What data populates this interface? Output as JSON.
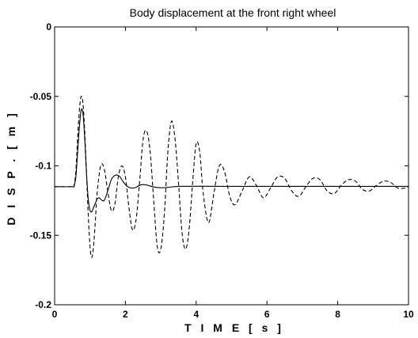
{
  "chart_data": {
    "type": "line",
    "title": "Body displacement at the front right wheel",
    "xlabel": "T I M E   [ s ]",
    "ylabel": "D I S P .   [ m ]",
    "xlim": [
      0,
      10
    ],
    "ylim": [
      -0.2,
      0
    ],
    "xticks": [
      0,
      2,
      4,
      6,
      8,
      10
    ],
    "yticks": [
      0,
      -0.05,
      -0.1,
      -0.15,
      -0.2
    ],
    "xtick_labels": [
      "0",
      "2",
      "4",
      "6",
      "8",
      "10"
    ],
    "ytick_labels": [
      "0",
      "-0.05",
      "-0.1",
      "-0.15",
      "-0.2"
    ],
    "grid": false,
    "series": [
      {
        "style": "solid",
        "color": "#000000",
        "x": [
          0,
          0.5,
          0.55,
          0.6,
          0.65,
          0.7,
          0.75,
          0.8,
          0.85,
          0.9,
          0.95,
          1.0,
          1.05,
          1.1,
          1.15,
          1.2,
          1.25,
          1.3,
          1.35,
          1.4,
          1.45,
          1.5,
          1.55,
          1.6,
          1.65,
          1.7,
          1.75,
          1.8,
          1.85,
          1.9,
          2.0,
          2.1,
          2.2,
          2.3,
          2.4,
          2.5,
          2.6,
          2.8,
          3.0,
          3.2,
          3.5,
          4.0,
          5.0,
          6.0,
          8.0,
          10.0
        ],
        "y": [
          -0.115,
          -0.115,
          -0.1145,
          -0.108,
          -0.09,
          -0.072,
          -0.06,
          -0.062,
          -0.08,
          -0.105,
          -0.124,
          -0.132,
          -0.133,
          -0.13,
          -0.127,
          -0.124,
          -0.123,
          -0.124,
          -0.125,
          -0.125,
          -0.122,
          -0.118,
          -0.114,
          -0.11,
          -0.108,
          -0.107,
          -0.1065,
          -0.107,
          -0.108,
          -0.11,
          -0.1135,
          -0.1155,
          -0.116,
          -0.1155,
          -0.114,
          -0.1135,
          -0.1138,
          -0.1152,
          -0.1158,
          -0.1155,
          -0.1148,
          -0.1147,
          -0.1148,
          -0.1148,
          -0.1148,
          -0.1148
        ]
      },
      {
        "style": "dashed",
        "color": "#000000",
        "x": [
          0,
          0.5,
          0.55,
          0.6,
          0.65,
          0.7,
          0.75,
          0.8,
          0.85,
          0.9,
          0.95,
          1.0,
          1.05,
          1.1,
          1.15,
          1.2,
          1.3,
          1.4,
          1.5,
          1.6,
          1.7,
          1.8,
          1.9,
          2.0,
          2.1,
          2.2,
          2.3,
          2.4,
          2.5,
          2.6,
          2.7,
          2.8,
          2.9,
          3.0,
          3.1,
          3.2,
          3.3,
          3.4,
          3.5,
          3.6,
          3.7,
          3.8,
          3.9,
          4.0,
          4.1,
          4.2,
          4.35,
          4.5,
          4.65,
          4.8,
          4.95,
          5.1,
          5.3,
          5.5,
          5.7,
          5.9,
          6.1,
          6.3,
          6.5,
          6.7,
          6.9,
          7.1,
          7.3,
          7.5,
          7.7,
          7.9,
          8.1,
          8.3,
          8.5,
          8.7,
          8.9,
          9.1,
          9.3,
          9.5,
          9.7,
          9.9,
          10.0
        ],
        "y": [
          -0.115,
          -0.115,
          -0.114,
          -0.104,
          -0.08,
          -0.06,
          -0.05,
          -0.055,
          -0.075,
          -0.105,
          -0.135,
          -0.158,
          -0.166,
          -0.158,
          -0.14,
          -0.12,
          -0.1,
          -0.102,
          -0.118,
          -0.132,
          -0.128,
          -0.108,
          -0.1,
          -0.108,
          -0.13,
          -0.146,
          -0.139,
          -0.112,
          -0.081,
          -0.075,
          -0.09,
          -0.125,
          -0.158,
          -0.16,
          -0.135,
          -0.09,
          -0.068,
          -0.08,
          -0.112,
          -0.148,
          -0.16,
          -0.146,
          -0.112,
          -0.084,
          -0.09,
          -0.12,
          -0.141,
          -0.12,
          -0.1,
          -0.104,
          -0.122,
          -0.128,
          -0.118,
          -0.108,
          -0.114,
          -0.123,
          -0.116,
          -0.108,
          -0.109,
          -0.118,
          -0.122,
          -0.115,
          -0.109,
          -0.11,
          -0.118,
          -0.12,
          -0.114,
          -0.11,
          -0.111,
          -0.117,
          -0.118,
          -0.114,
          -0.111,
          -0.112,
          -0.116,
          -0.116,
          -0.115
        ]
      }
    ]
  }
}
